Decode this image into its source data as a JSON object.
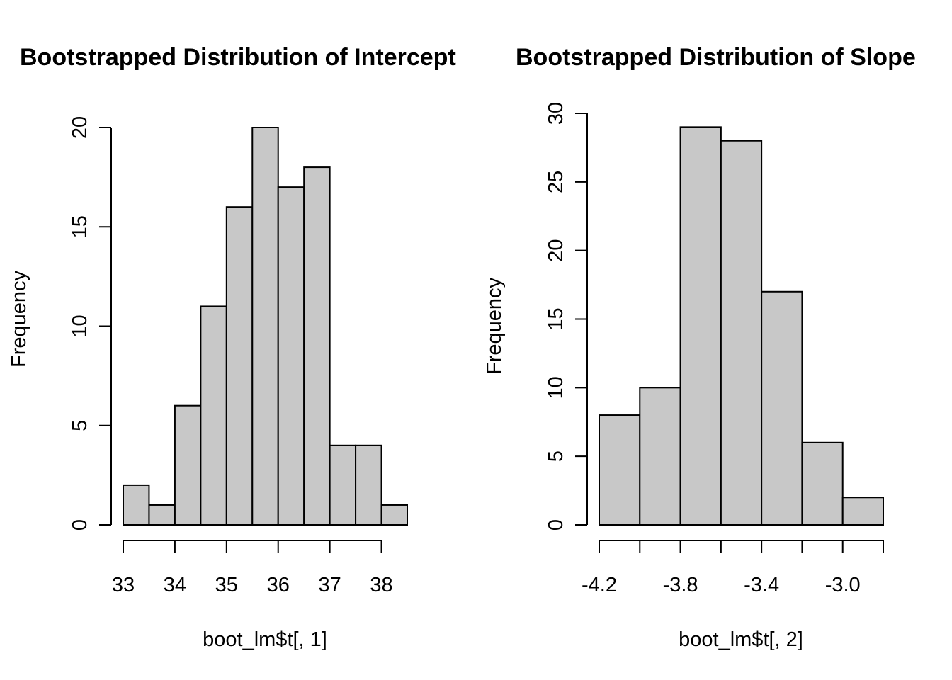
{
  "chart_data": [
    {
      "type": "bar",
      "subtype": "histogram",
      "title": "Bootstrapped Distribution of Intercept",
      "xlabel": "boot_lm$t[, 1]",
      "ylabel": "Frequency",
      "bin_edges": [
        33,
        33.5,
        34,
        34.5,
        35,
        35.5,
        36,
        36.5,
        37,
        37.5,
        38,
        38.5
      ],
      "values": [
        2,
        1,
        6,
        11,
        16,
        20,
        17,
        18,
        4,
        4,
        1
      ],
      "xlim": [
        33,
        38.5
      ],
      "ylim": [
        0,
        20
      ],
      "x_ticks": [
        33,
        34,
        35,
        36,
        37,
        38
      ],
      "x_tick_labels": [
        "33",
        "34",
        "35",
        "36",
        "37",
        "38"
      ],
      "y_ticks": [
        0,
        5,
        10,
        15,
        20
      ],
      "y_tick_labels": [
        "0",
        "5",
        "10",
        "15",
        "20"
      ],
      "grid": false,
      "bar_color": "#c8c8c8"
    },
    {
      "type": "bar",
      "subtype": "histogram",
      "title": "Bootstrapped Distribution of Slope",
      "xlabel": "boot_lm$t[, 2]",
      "ylabel": "Frequency",
      "bin_edges": [
        -4.2,
        -4.0,
        -3.8,
        -3.6,
        -3.4,
        -3.2,
        -3.0,
        -2.8
      ],
      "values": [
        8,
        10,
        29,
        28,
        17,
        6,
        2
      ],
      "xlim": [
        -4.2,
        -2.8
      ],
      "ylim": [
        0,
        30
      ],
      "x_ticks": [
        -4.2,
        -4.0,
        -3.8,
        -3.6,
        -3.4,
        -3.2,
        -3.0,
        -2.8
      ],
      "x_tick_labels": [
        "-4.2",
        "",
        "-3.8",
        "",
        "-3.4",
        "",
        "-3.0",
        ""
      ],
      "y_ticks": [
        0,
        5,
        10,
        15,
        20,
        25,
        30
      ],
      "y_tick_labels": [
        "0",
        "5",
        "10",
        "15",
        "20",
        "25",
        "30"
      ],
      "grid": false,
      "bar_color": "#c8c8c8"
    }
  ]
}
